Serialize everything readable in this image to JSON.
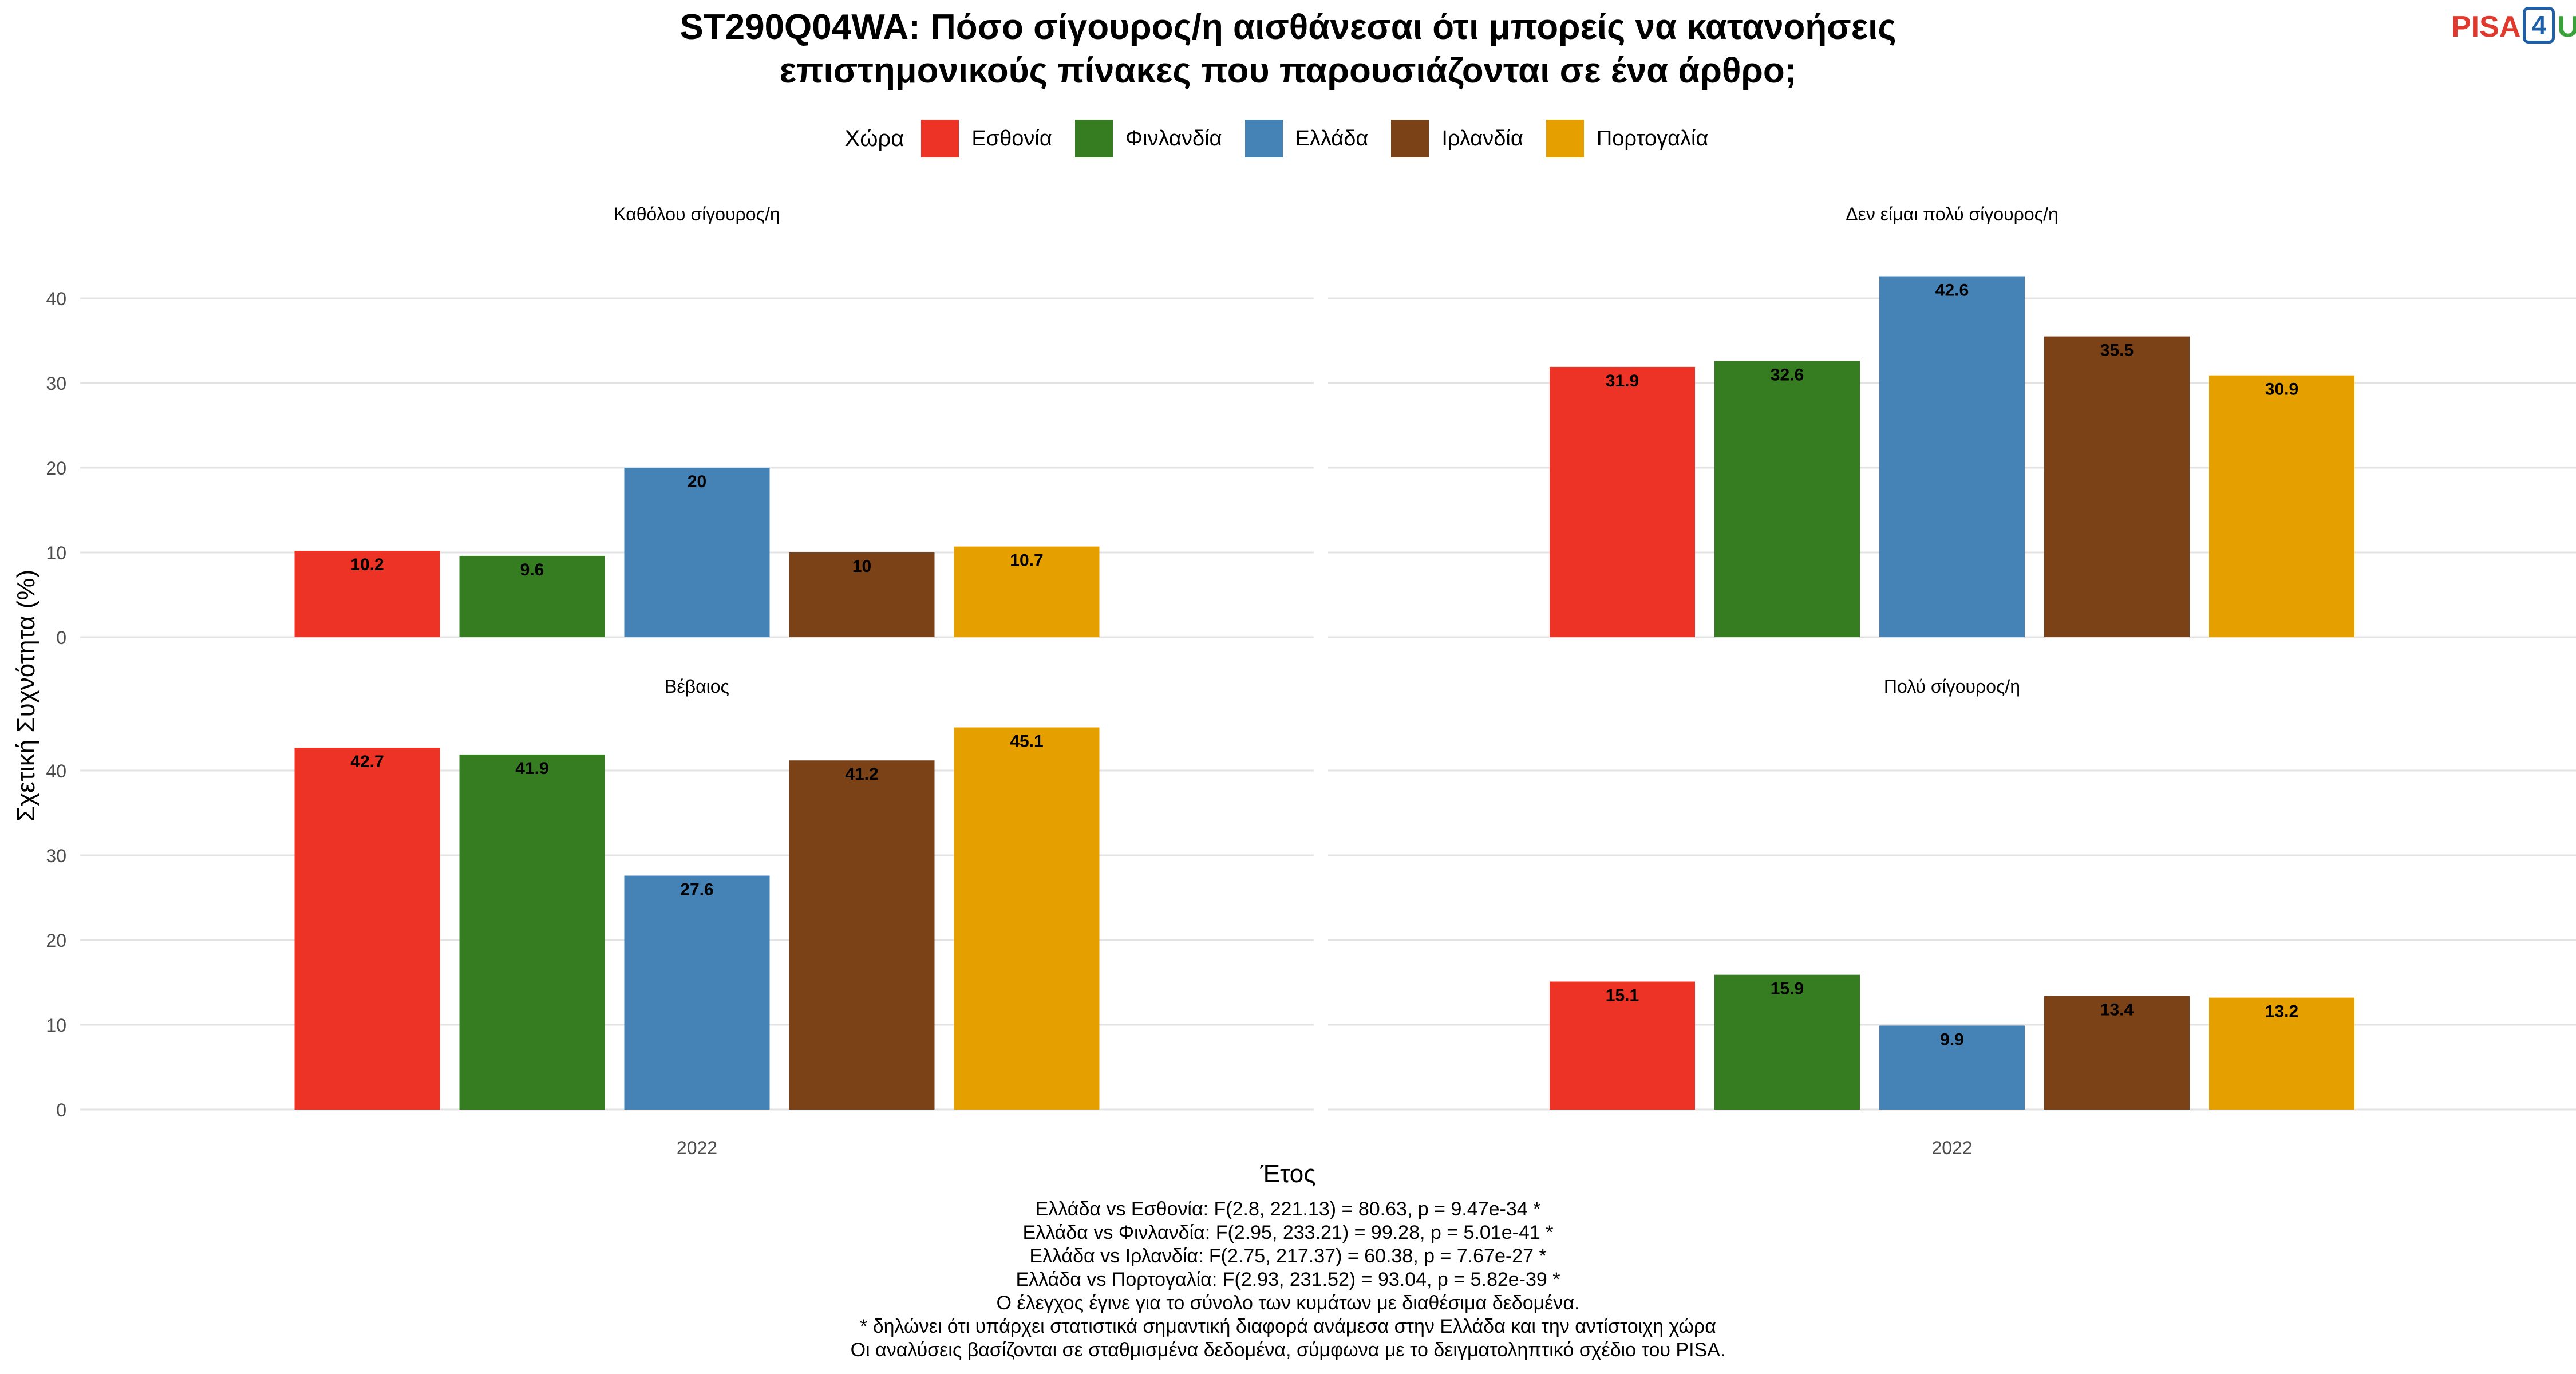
{
  "title": {
    "line1": "ST290Q04WA: Πόσο σίγουρος/η αισθάνεσαι ότι μπορείς να κατανοήσεις",
    "line2": "επιστημονικούς πίνακες που παρουσιάζονται σε ένα άρθρο;"
  },
  "logo": {
    "part1": "PISA",
    "part2": "4",
    "part3": "U"
  },
  "legend": {
    "title": "Χώρα",
    "items": [
      {
        "label": "Εσθονία",
        "color": "#ec3325"
      },
      {
        "label": "Φινλανδία",
        "color": "#367d22"
      },
      {
        "label": "Ελλάδα",
        "color": "#4582b6"
      },
      {
        "label": "Ιρλανδία",
        "color": "#7a4216"
      },
      {
        "label": "Πορτογαλία",
        "color": "#e5a000"
      }
    ]
  },
  "axes": {
    "ylabel": "Σχετική Συχνότητα (%)",
    "xlabel": "Έτος"
  },
  "footnotes": [
    "Ελλάδα vs Εσθονία: F(2.8, 221.13) = 80.63, p = 9.47e-34 *",
    "Ελλάδα vs Φινλανδία: F(2.95, 233.21) = 99.28, p = 5.01e-41 *",
    "Ελλάδα vs Ιρλανδία: F(2.75, 217.37) = 60.38, p = 7.67e-27 *",
    "Ελλάδα vs Πορτογαλία: F(2.93, 231.52) = 93.04, p = 5.82e-39 *",
    "Ο έλεγχος έγινε για το σύνολο των κυμάτων με διαθέσιμα δεδομένα.",
    "* δηλώνει ότι υπάρχει στατιστικά σημαντική διαφορά ανάμεσα στην Ελλάδα και την αντίστοιχη χώρα",
    "Οι αναλύσεις βασίζονται σε σταθμισμένα δεδομένα, σύμφωνα με το δειγματοληπτικό σχέδιο του PISA."
  ],
  "chart_data": {
    "type": "bar",
    "layout": "facets 2x2",
    "ylim": [
      0,
      45
    ],
    "yticks": [
      0,
      10,
      20,
      30,
      40
    ],
    "grid": true,
    "legend_position": "top",
    "categories": [
      "Εσθονία",
      "Φινλανδία",
      "Ελλάδα",
      "Ιρλανδία",
      "Πορτογαλία"
    ],
    "x": "2022",
    "facets": [
      {
        "title": "Καθόλου σίγουρος/η",
        "values": [
          10.2,
          9.6,
          20,
          10,
          10.7
        ],
        "labels": [
          "10.2",
          "9.6",
          "20",
          "10",
          "10.7"
        ]
      },
      {
        "title": "Δεν είμαι πολύ σίγουρος/η",
        "values": [
          31.9,
          32.6,
          42.6,
          35.5,
          30.9
        ],
        "labels": [
          "31.9",
          "32.6",
          "42.6",
          "35.5",
          "30.9"
        ]
      },
      {
        "title": "Βέβαιος",
        "values": [
          42.7,
          41.9,
          27.6,
          41.2,
          45.1
        ],
        "labels": [
          "42.7",
          "41.9",
          "27.6",
          "41.2",
          "45.1"
        ]
      },
      {
        "title": "Πολύ σίγουρος/η",
        "values": [
          15.1,
          15.9,
          9.9,
          13.4,
          13.2
        ],
        "labels": [
          "15.1",
          "15.9",
          "9.9",
          "13.4",
          "13.2"
        ]
      }
    ]
  }
}
